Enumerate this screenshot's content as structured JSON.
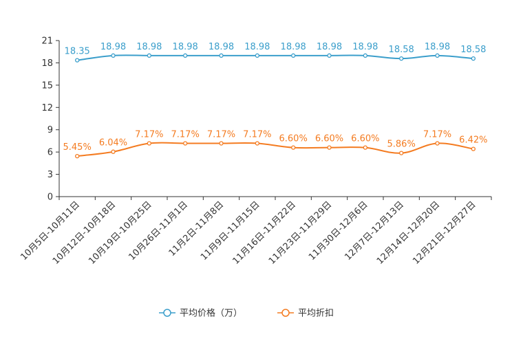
{
  "chart_data": {
    "type": "line",
    "title": "",
    "xlabel": "",
    "ylabel": "",
    "ylim": [
      0,
      21
    ],
    "yticks": [
      0,
      3,
      6,
      9,
      12,
      15,
      18,
      21
    ],
    "grid": false,
    "legend_position": "bottom-center",
    "categories": [
      "10月5日-10月11日",
      "10月12日-10月18日",
      "10月19日-10月25日",
      "10月26日-11月1日",
      "11月2日-11月8日",
      "11月9日-11月15日",
      "11月16日-11月22日",
      "11月23日-11月29日",
      "11月30日-12月6日",
      "12月7日-12月13日",
      "12月14日-12月20日",
      "12月21日-12月27日"
    ],
    "series": [
      {
        "name": "平均价格（万）",
        "color": "#3a9ecb",
        "values": [
          18.35,
          18.98,
          18.98,
          18.98,
          18.98,
          18.98,
          18.98,
          18.98,
          18.98,
          18.58,
          18.98,
          18.58
        ],
        "labels": [
          "18.35",
          "18.98",
          "18.98",
          "18.98",
          "18.98",
          "18.98",
          "18.98",
          "18.98",
          "18.98",
          "18.58",
          "18.98",
          "18.58"
        ]
      },
      {
        "name": "平均折扣",
        "color": "#f47b20",
        "values": [
          5.45,
          6.04,
          7.17,
          7.17,
          7.17,
          7.17,
          6.6,
          6.6,
          6.6,
          5.86,
          7.17,
          6.42
        ],
        "labels": [
          "5.45%",
          "6.04%",
          "7.17%",
          "7.17%",
          "7.17%",
          "7.17%",
          "6.60%",
          "6.60%",
          "6.60%",
          "5.86%",
          "7.17%",
          "6.42%"
        ]
      }
    ]
  }
}
